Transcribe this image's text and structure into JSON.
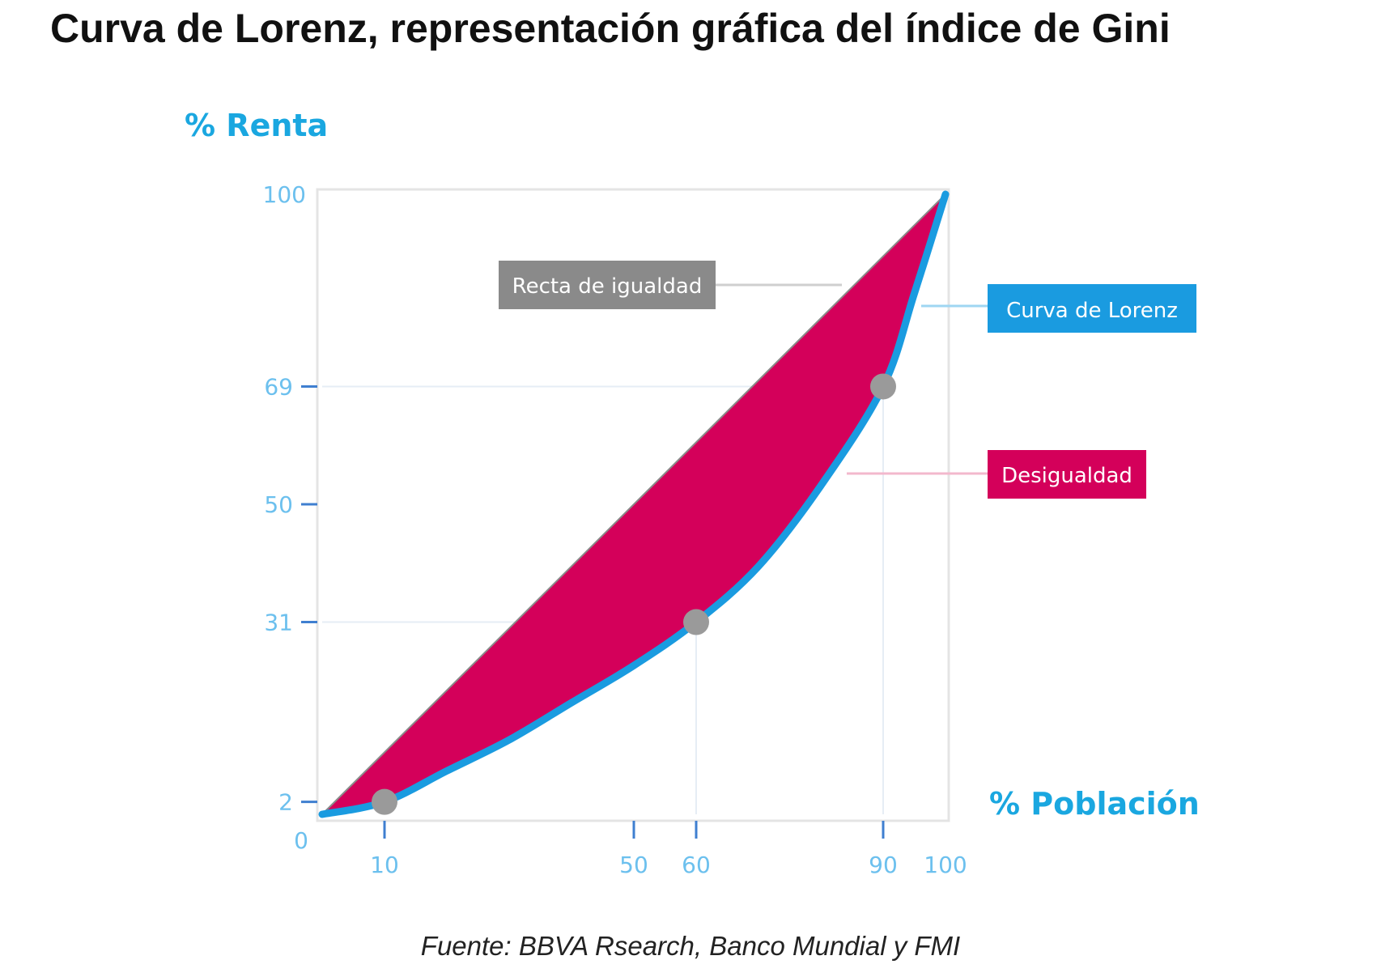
{
  "title": "Curva de Lorenz, representación gráfica del índice de Gini",
  "source": "Fuente: BBVA Rsearch, Banco Mundial y FMI",
  "colors": {
    "lorenz_curve": "#1a9be0",
    "inequality_area": "#d4005a",
    "equality_line": "#8a8a8a",
    "point": "#9a9a9a",
    "ticks": "#6cc0ee",
    "axis_title": "#1aa7e0"
  },
  "chart_data": {
    "type": "area",
    "title": "",
    "xlabel": "% Población",
    "ylabel": "% Renta",
    "xlim": [
      0,
      100
    ],
    "ylim": [
      0,
      100
    ],
    "x_ticks": [
      10,
      50,
      60,
      90,
      100
    ],
    "y_ticks": [
      2,
      31,
      50,
      69,
      100
    ],
    "origin_label": "0",
    "grid": false,
    "equality_line": {
      "label": "Recta de igualdad",
      "points": [
        [
          0,
          0
        ],
        [
          100,
          100
        ]
      ]
    },
    "lorenz_curve": {
      "label": "Curva de Lorenz",
      "points": [
        [
          0,
          0
        ],
        [
          10,
          2
        ],
        [
          20,
          7
        ],
        [
          30,
          12
        ],
        [
          40,
          18
        ],
        [
          50,
          24
        ],
        [
          60,
          31
        ],
        [
          70,
          40
        ],
        [
          80,
          53
        ],
        [
          90,
          69
        ],
        [
          95,
          84
        ],
        [
          100,
          100
        ]
      ]
    },
    "inequality_area": {
      "label": "Desigualdad"
    },
    "highlighted_points": [
      [
        10,
        2
      ],
      [
        60,
        31
      ],
      [
        90,
        69
      ]
    ],
    "guide_lines": [
      {
        "from": [
          0,
          69
        ],
        "to": [
          90,
          69
        ]
      },
      {
        "from": [
          0,
          31
        ],
        "to": [
          60,
          31
        ]
      },
      {
        "from": [
          60,
          0
        ],
        "to": [
          60,
          31
        ]
      },
      {
        "from": [
          90,
          0
        ],
        "to": [
          90,
          69
        ]
      }
    ],
    "legend": "callout labels on the right"
  }
}
